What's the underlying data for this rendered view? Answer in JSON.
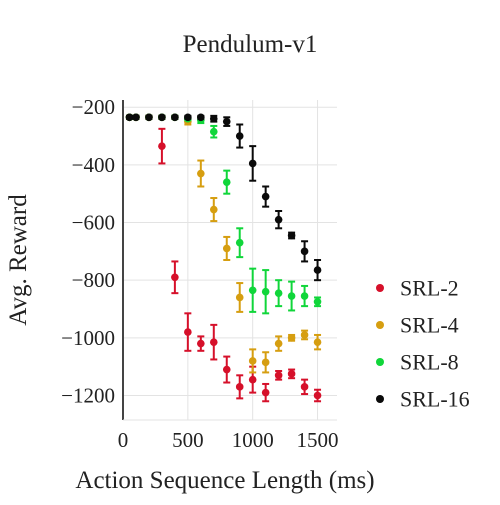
{
  "chart_data": {
    "type": "scatter",
    "title": "Pendulum-v1",
    "xlabel": "Action Sequence Length (ms)",
    "ylabel": "Avg. Reward",
    "xlim": [
      0,
      1650
    ],
    "ylim": [
      -1285,
      -175
    ],
    "xticks": [
      0,
      500,
      1000,
      1500
    ],
    "xtick_labels": [
      "0",
      "500",
      "1000",
      "1500"
    ],
    "yticks": [
      -200,
      -400,
      -600,
      -800,
      -1000,
      -1200
    ],
    "ytick_labels": [
      "−200",
      "−400",
      "−600",
      "−800",
      "−1000",
      "−1200"
    ],
    "grid": true,
    "error_bars": true,
    "legend_position": "right",
    "series": [
      {
        "name": "SRL-2",
        "color": "#d6102a",
        "x": [
          50,
          100,
          200,
          300,
          400,
          500,
          600,
          700,
          800,
          900,
          1000,
          1100,
          1200,
          1300,
          1400,
          1500
        ],
        "y": [
          -235,
          -235,
          -235,
          -335,
          -790,
          -980,
          -1020,
          -1015,
          -1110,
          -1170,
          -1145,
          -1190,
          -1130,
          -1125,
          -1170,
          -1200
        ],
        "err": [
          5,
          5,
          5,
          60,
          55,
          65,
          25,
          60,
          45,
          40,
          45,
          30,
          15,
          15,
          25,
          20
        ]
      },
      {
        "name": "SRL-4",
        "color": "#d69e10",
        "x": [
          50,
          100,
          200,
          300,
          400,
          500,
          600,
          700,
          800,
          900,
          1000,
          1100,
          1200,
          1300,
          1400,
          1500
        ],
        "y": [
          -235,
          -235,
          -235,
          -235,
          -235,
          -250,
          -430,
          -555,
          -690,
          -860,
          -1080,
          -1085,
          -1020,
          -1000,
          -990,
          -1015
        ],
        "err": [
          5,
          5,
          5,
          5,
          5,
          10,
          45,
          40,
          40,
          50,
          40,
          35,
          25,
          10,
          15,
          25
        ]
      },
      {
        "name": "SRL-8",
        "color": "#10d63a",
        "x": [
          50,
          100,
          200,
          300,
          400,
          500,
          600,
          700,
          800,
          900,
          1000,
          1100,
          1200,
          1300,
          1400,
          1500
        ],
        "y": [
          -235,
          -235,
          -235,
          -235,
          -235,
          -240,
          -245,
          -285,
          -460,
          -670,
          -835,
          -840,
          -845,
          -855,
          -855,
          -875
        ],
        "err": [
          5,
          5,
          5,
          5,
          5,
          5,
          10,
          20,
          40,
          50,
          75,
          75,
          45,
          50,
          35,
          15
        ]
      },
      {
        "name": "SRL-16",
        "color": "#0a0a0a",
        "x": [
          50,
          100,
          200,
          300,
          400,
          500,
          600,
          700,
          800,
          900,
          1000,
          1100,
          1200,
          1300,
          1400,
          1500
        ],
        "y": [
          -235,
          -235,
          -235,
          -235,
          -235,
          -235,
          -235,
          -240,
          -250,
          -300,
          -395,
          -510,
          -590,
          -645,
          -700,
          -765
        ],
        "err": [
          5,
          5,
          5,
          5,
          5,
          5,
          5,
          10,
          15,
          40,
          60,
          35,
          30,
          10,
          35,
          35
        ]
      }
    ]
  }
}
